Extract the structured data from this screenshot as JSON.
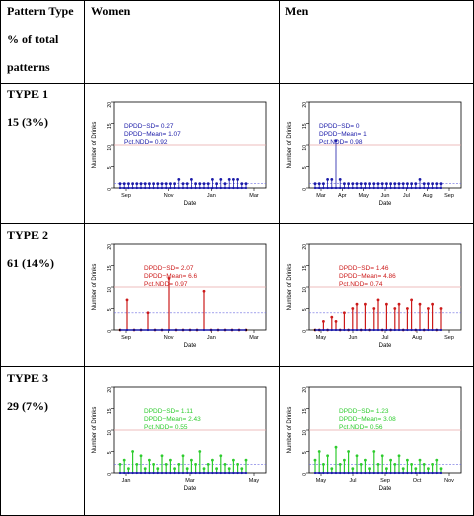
{
  "header": {
    "col1_line1": "Pattern Type",
    "col1_line2": "% of total",
    "col1_line3": "patterns",
    "col2": "Women",
    "col3": "Men"
  },
  "rows": [
    {
      "type": "TYPE 1",
      "share": "15 (3%)"
    },
    {
      "type": "TYPE 2",
      "share": "61 (14%)"
    },
    {
      "type": "TYPE 3",
      "share": "29 (7%)"
    }
  ],
  "colors": {
    "type1": "#1a1aa8",
    "type2": "#cc1a1a",
    "type3": "#2ecc2e",
    "refline": "#e8a6a6",
    "meanline": "#6b6be0",
    "zero_points": "#1a1aa8"
  },
  "chart_data": [
    {
      "id": "type1-women",
      "type": "line",
      "xlabel": "Date",
      "ylabel": "Number of Drinks",
      "ylim": [
        0,
        20
      ],
      "yticks": [
        0,
        5,
        10,
        15,
        20
      ],
      "xticks": [
        "Sep",
        "Nov",
        "Jan",
        "Mar"
      ],
      "reference_line": 10,
      "mean_line": 1,
      "annotations": [
        "DPDD−SD= 0.27",
        "DPDD−Mean= 1.07",
        "Pct.NDD= 0.92"
      ],
      "series": [
        {
          "x": [
            0.0,
            0.03,
            0.06,
            0.09,
            0.12,
            0.15,
            0.18,
            0.21,
            0.24,
            0.27,
            0.3,
            0.33,
            0.36,
            0.39,
            0.42,
            0.45,
            0.48,
            0.51,
            0.54,
            0.57,
            0.6,
            0.63,
            0.66,
            0.69,
            0.72,
            0.75,
            0.78,
            0.81,
            0.84,
            0.87,
            0.9
          ],
          "y": [
            1,
            1,
            1,
            1,
            1,
            1,
            1,
            1,
            1,
            1,
            1,
            1,
            1,
            1,
            2,
            1,
            1,
            2,
            1,
            1,
            1,
            1,
            2,
            1,
            2,
            1,
            2,
            2,
            2,
            1,
            1
          ]
        }
      ]
    },
    {
      "id": "type1-men",
      "type": "line",
      "xlabel": "Date",
      "ylabel": "Number of Drinks",
      "ylim": [
        0,
        20
      ],
      "yticks": [
        0,
        5,
        10,
        15,
        20
      ],
      "xticks": [
        "Mar",
        "Apr",
        "May",
        "Jun",
        "Jul",
        "Aug",
        "Sep"
      ],
      "reference_line": 10,
      "mean_line": 1,
      "annotations": [
        "DPDD−SD= 0",
        "DPDD−Mean= 1",
        "Pct.NDD= 0.98"
      ],
      "series": [
        {
          "x": [
            0.0,
            0.03,
            0.06,
            0.09,
            0.12,
            0.15,
            0.18,
            0.21,
            0.24,
            0.27,
            0.3,
            0.33,
            0.36,
            0.39,
            0.42,
            0.45,
            0.48,
            0.51,
            0.54,
            0.57,
            0.6,
            0.63,
            0.66,
            0.69,
            0.72,
            0.75,
            0.78,
            0.81,
            0.84,
            0.87,
            0.9
          ],
          "y": [
            1,
            1,
            1,
            2,
            2,
            11,
            2,
            1,
            1,
            1,
            1,
            1,
            1,
            1,
            1,
            1,
            1,
            1,
            1,
            1,
            1,
            1,
            1,
            1,
            1,
            2,
            1,
            1,
            1,
            1,
            1
          ]
        }
      ]
    },
    {
      "id": "type2-women",
      "type": "line",
      "xlabel": "Date",
      "ylabel": "Number of Drinks",
      "ylim": [
        0,
        20
      ],
      "yticks": [
        0,
        5,
        10,
        15,
        20
      ],
      "xticks": [
        "Sep",
        "Nov",
        "Jan",
        "Mar"
      ],
      "reference_line": 10,
      "mean_line": 4,
      "annotations": [
        "DPDD−SD= 2.07",
        "DPDD−Mean= 6.6",
        "Pct.NDD= 0.97"
      ],
      "series": [
        {
          "x": [
            0.0,
            0.05,
            0.1,
            0.15,
            0.2,
            0.25,
            0.3,
            0.35,
            0.4,
            0.45,
            0.5,
            0.55,
            0.6,
            0.65,
            0.7,
            0.75,
            0.8,
            0.85,
            0.9
          ],
          "y": [
            0,
            7,
            0,
            0,
            4,
            0,
            0,
            12,
            0,
            0,
            0,
            0,
            9,
            0,
            0,
            0,
            0,
            0,
            0
          ]
        }
      ]
    },
    {
      "id": "type2-men",
      "type": "line",
      "xlabel": "Date",
      "ylabel": "Number of Drinks",
      "ylim": [
        0,
        20
      ],
      "yticks": [
        0,
        5,
        10,
        15,
        20
      ],
      "xticks": [
        "May",
        "Jun",
        "Jul",
        "Aug",
        "Sep"
      ],
      "reference_line": 10,
      "mean_line": 4,
      "annotations": [
        "DPDD−SD= 1.46",
        "DPDD−Mean= 4.86",
        "Pct.NDD= 0.74"
      ],
      "series": [
        {
          "x": [
            0.0,
            0.03,
            0.06,
            0.09,
            0.12,
            0.15,
            0.18,
            0.21,
            0.24,
            0.27,
            0.3,
            0.33,
            0.36,
            0.39,
            0.42,
            0.45,
            0.48,
            0.51,
            0.54,
            0.57,
            0.6,
            0.63,
            0.66,
            0.69,
            0.72,
            0.75,
            0.78,
            0.81,
            0.84,
            0.87,
            0.9
          ],
          "y": [
            0,
            0,
            2,
            0,
            3,
            2,
            0,
            4,
            0,
            5,
            6,
            0,
            6,
            0,
            5,
            7,
            0,
            6,
            0,
            5,
            6,
            0,
            5,
            7,
            0,
            6,
            0,
            5,
            6,
            0,
            5
          ]
        }
      ]
    },
    {
      "id": "type3-women",
      "type": "line",
      "xlabel": "Date",
      "ylabel": "Number of Drinks",
      "ylim": [
        0,
        20
      ],
      "yticks": [
        0,
        5,
        10,
        15,
        20
      ],
      "xticks": [
        "Jan",
        "Mar",
        "May"
      ],
      "reference_line": 10,
      "mean_line": 2,
      "annotations": [
        "DPDD−SD= 1.11",
        "DPDD−Mean= 2.43",
        "Pct.NDD= 0.55"
      ],
      "series": [
        {
          "x": [
            0.0,
            0.03,
            0.06,
            0.09,
            0.12,
            0.15,
            0.18,
            0.21,
            0.24,
            0.27,
            0.3,
            0.33,
            0.36,
            0.39,
            0.42,
            0.45,
            0.48,
            0.51,
            0.54,
            0.57,
            0.6,
            0.63,
            0.66,
            0.69,
            0.72,
            0.75,
            0.78,
            0.81,
            0.84,
            0.87,
            0.9
          ],
          "y": [
            2,
            3,
            1,
            5,
            2,
            4,
            1,
            3,
            2,
            1,
            4,
            2,
            3,
            1,
            2,
            4,
            1,
            3,
            2,
            5,
            1,
            2,
            3,
            1,
            4,
            2,
            1,
            3,
            2,
            1,
            3
          ]
        }
      ]
    },
    {
      "id": "type3-men",
      "type": "line",
      "xlabel": "Date",
      "ylabel": "Number of Drinks",
      "ylim": [
        0,
        20
      ],
      "yticks": [
        0,
        5,
        10,
        15,
        20
      ],
      "xticks": [
        "May",
        "Jul",
        "Sep",
        "Oct",
        "Nov"
      ],
      "reference_line": 10,
      "mean_line": 2,
      "annotations": [
        "DPDD−SD= 1.23",
        "DPDD−Mean= 3.08",
        "Pct.NDD= 0.56"
      ],
      "series": [
        {
          "x": [
            0.0,
            0.03,
            0.06,
            0.09,
            0.12,
            0.15,
            0.18,
            0.21,
            0.24,
            0.27,
            0.3,
            0.33,
            0.36,
            0.39,
            0.42,
            0.45,
            0.48,
            0.51,
            0.54,
            0.57,
            0.6,
            0.63,
            0.66,
            0.69,
            0.72,
            0.75,
            0.78,
            0.81,
            0.84,
            0.87,
            0.9
          ],
          "y": [
            3,
            5,
            2,
            4,
            1,
            6,
            2,
            3,
            5,
            1,
            4,
            2,
            3,
            1,
            5,
            2,
            4,
            1,
            3,
            2,
            4,
            1,
            3,
            2,
            1,
            3,
            2,
            1,
            2,
            3,
            1
          ]
        }
      ]
    }
  ]
}
